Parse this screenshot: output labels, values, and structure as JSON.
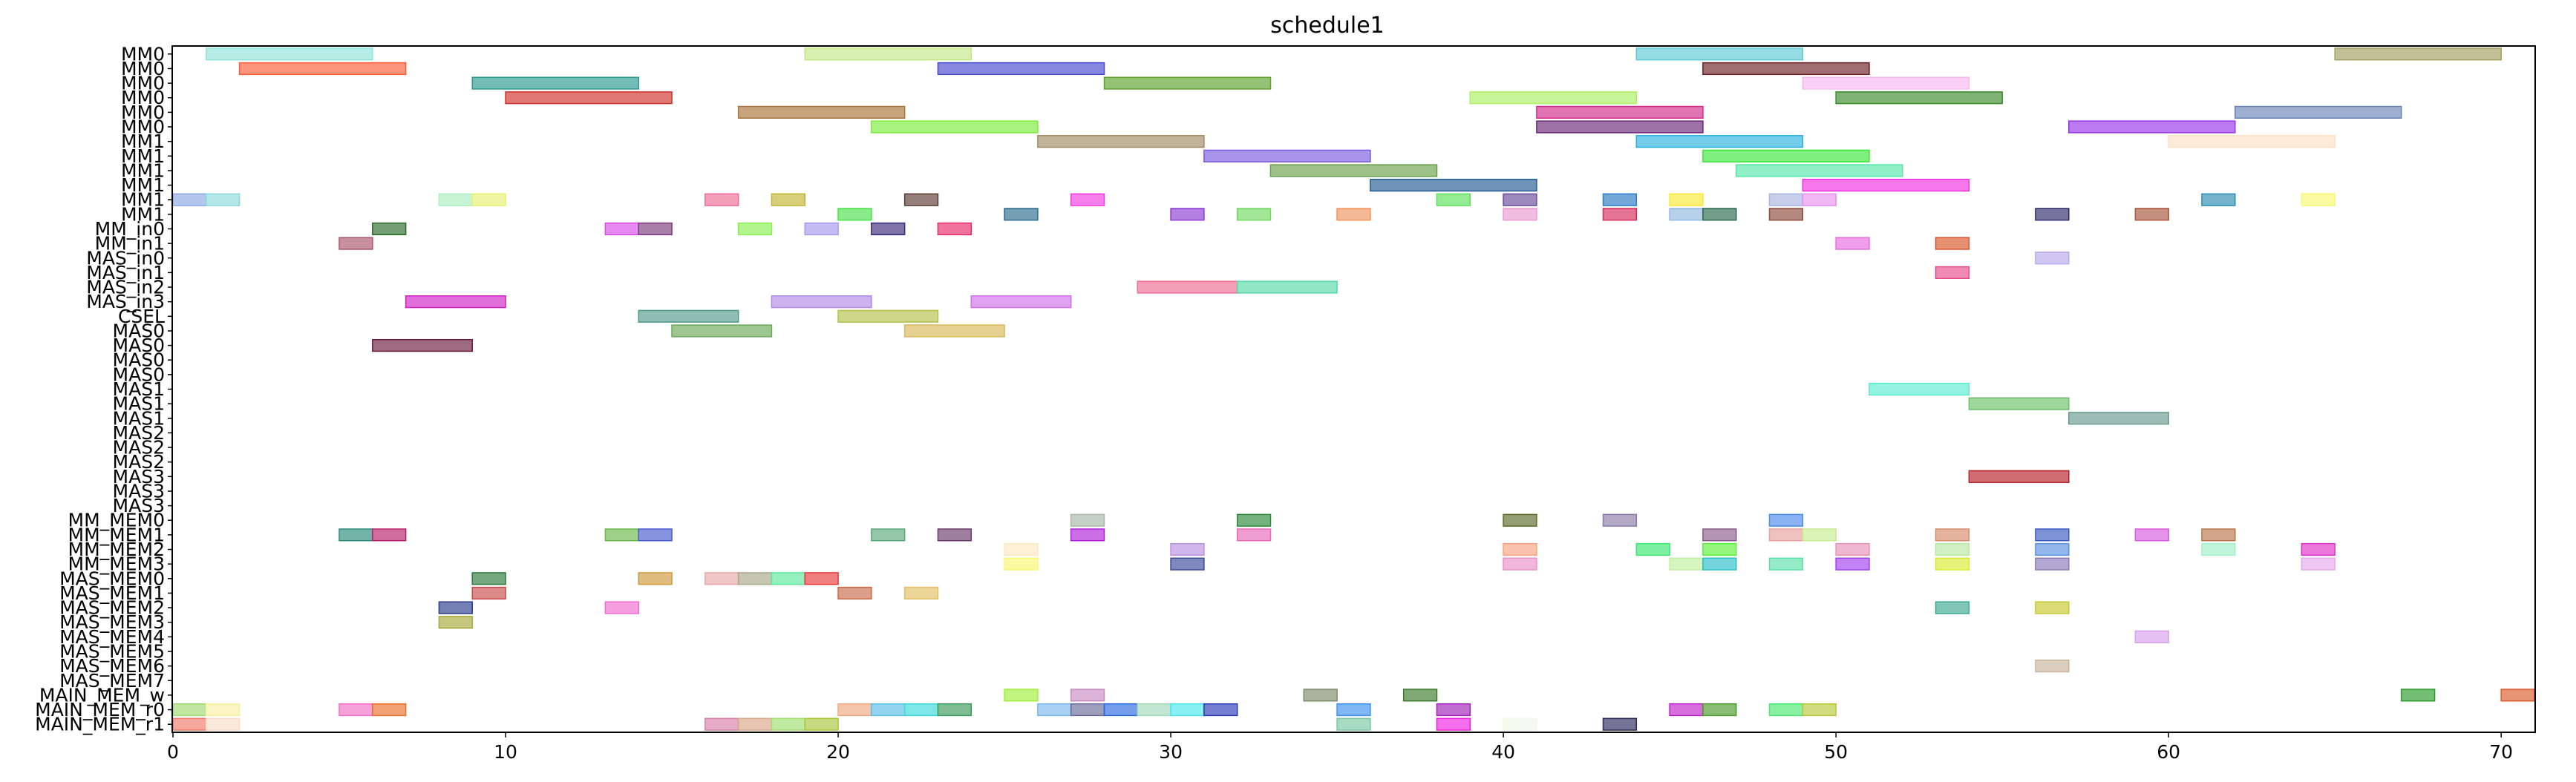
{
  "chart_data": {
    "type": "gantt",
    "title": "schedule1",
    "xlim": [
      0,
      71
    ],
    "x_ticks": [
      0,
      10,
      20,
      30,
      40,
      50,
      60,
      70
    ],
    "grid": false,
    "rows": [
      "MM0",
      "MM0",
      "MM0",
      "MM0",
      "MM0",
      "MM0",
      "MM1",
      "MM1",
      "MM1",
      "MM1",
      "MM1",
      "MM1",
      "MM_in0",
      "MM_in1",
      "MAS_in0",
      "MAS_in1",
      "MAS_in2",
      "MAS_in3",
      "CSEL",
      "MAS0",
      "MAS0",
      "MAS0",
      "MAS0",
      "MAS1",
      "MAS1",
      "MAS1",
      "MAS2",
      "MAS2",
      "MAS2",
      "MAS3",
      "MAS3",
      "MAS3",
      "MM_MEM0",
      "MM_MEM1",
      "MM_MEM2",
      "MM_MEM3",
      "MAS_MEM0",
      "MAS_MEM1",
      "MAS_MEM2",
      "MAS_MEM3",
      "MAS_MEM4",
      "MAS_MEM5",
      "MAS_MEM6",
      "MAS_MEM7",
      "MAIN_MEM_w",
      "MAIN_MEM_r0",
      "MAIN_MEM_r1"
    ],
    "tasks": [
      {
        "row": 0,
        "start": 1,
        "end": 6,
        "color": "#8ee3d8"
      },
      {
        "row": 0,
        "start": 19,
        "end": 24,
        "color": "#c2e884"
      },
      {
        "row": 0,
        "start": 44,
        "end": 49,
        "color": "#5ecad6"
      },
      {
        "row": 0,
        "start": 65,
        "end": 70,
        "color": "#a39d60"
      },
      {
        "row": 1,
        "start": 2,
        "end": 7,
        "color": "#ff5a36"
      },
      {
        "row": 1,
        "start": 23,
        "end": 28,
        "color": "#4848d0"
      },
      {
        "row": 1,
        "start": 46,
        "end": 51,
        "color": "#6b1f24"
      },
      {
        "row": 2,
        "start": 9,
        "end": 14,
        "color": "#2a9a90"
      },
      {
        "row": 2,
        "start": 28,
        "end": 33,
        "color": "#5ea22c"
      },
      {
        "row": 2,
        "start": 49,
        "end": 54,
        "color": "#f7b8f0"
      },
      {
        "row": 3,
        "start": 10,
        "end": 15,
        "color": "#d0302a"
      },
      {
        "row": 3,
        "start": 39,
        "end": 44,
        "color": "#aaf060"
      },
      {
        "row": 3,
        "start": 50,
        "end": 55,
        "color": "#3a8a2a"
      },
      {
        "row": 4,
        "start": 17,
        "end": 22,
        "color": "#a8743a"
      },
      {
        "row": 4,
        "start": 41,
        "end": 46,
        "color": "#d42a8a"
      },
      {
        "row": 4,
        "start": 62,
        "end": 67,
        "color": "#6a84b8"
      },
      {
        "row": 5,
        "start": 21,
        "end": 26,
        "color": "#7aec38"
      },
      {
        "row": 5,
        "start": 41,
        "end": 46,
        "color": "#6a2678"
      },
      {
        "row": 5,
        "start": 57,
        "end": 62,
        "color": "#9a34ec"
      },
      {
        "row": 6,
        "start": 26,
        "end": 31,
        "color": "#a08a62"
      },
      {
        "row": 6,
        "start": 44,
        "end": 49,
        "color": "#2ab0e0"
      },
      {
        "row": 6,
        "start": 60,
        "end": 65,
        "color": "#fbe0c4"
      },
      {
        "row": 7,
        "start": 31,
        "end": 36,
        "color": "#7a5ae0"
      },
      {
        "row": 7,
        "start": 46,
        "end": 51,
        "color": "#3ae83a"
      },
      {
        "row": 8,
        "start": 33,
        "end": 38,
        "color": "#6aa04a"
      },
      {
        "row": 8,
        "start": 47,
        "end": 52,
        "color": "#56e6a8"
      },
      {
        "row": 9,
        "start": 36,
        "end": 41,
        "color": "#245a92"
      },
      {
        "row": 9,
        "start": 49,
        "end": 54,
        "color": "#f230e0"
      },
      {
        "row": 10,
        "start": 0,
        "end": 1,
        "color": "#8aa8e0"
      },
      {
        "row": 10,
        "start": 1,
        "end": 2,
        "color": "#8ad8d8"
      },
      {
        "row": 10,
        "start": 8,
        "end": 9,
        "color": "#aaeec0"
      },
      {
        "row": 10,
        "start": 9,
        "end": 10,
        "color": "#e8f070"
      },
      {
        "row": 10,
        "start": 16,
        "end": 17,
        "color": "#f06a94"
      },
      {
        "row": 10,
        "start": 18,
        "end": 19,
        "color": "#c0b430"
      },
      {
        "row": 10,
        "start": 22,
        "end": 23,
        "color": "#5a3a34"
      },
      {
        "row": 10,
        "start": 27,
        "end": 28,
        "color": "#f03ae0"
      },
      {
        "row": 10,
        "start": 38,
        "end": 39,
        "color": "#5ae05a"
      },
      {
        "row": 10,
        "start": 40,
        "end": 41,
        "color": "#6a4a9a"
      },
      {
        "row": 10,
        "start": 43,
        "end": 44,
        "color": "#2a7ac8"
      },
      {
        "row": 10,
        "start": 45,
        "end": 46,
        "color": "#f8ea30"
      },
      {
        "row": 10,
        "start": 48,
        "end": 49,
        "color": "#a8b4e0"
      },
      {
        "row": 10,
        "start": 49,
        "end": 50,
        "color": "#e890f0"
      },
      {
        "row": 10,
        "start": 61,
        "end": 62,
        "color": "#2a8ab0"
      },
      {
        "row": 10,
        "start": 64,
        "end": 65,
        "color": "#f8f870"
      },
      {
        "row": 11,
        "start": 20,
        "end": 21,
        "color": "#4ae04a"
      },
      {
        "row": 11,
        "start": 25,
        "end": 26,
        "color": "#2a6a8a"
      },
      {
        "row": 11,
        "start": 30,
        "end": 31,
        "color": "#8a3ad0"
      },
      {
        "row": 11,
        "start": 32,
        "end": 33,
        "color": "#70d860"
      },
      {
        "row": 11,
        "start": 35,
        "end": 36,
        "color": "#f0925a"
      },
      {
        "row": 11,
        "start": 40,
        "end": 41,
        "color": "#e89ad0"
      },
      {
        "row": 11,
        "start": 43,
        "end": 44,
        "color": "#d82a5a"
      },
      {
        "row": 11,
        "start": 45,
        "end": 46,
        "color": "#90b8e0"
      },
      {
        "row": 11,
        "start": 46,
        "end": 47,
        "color": "#2a6a4a"
      },
      {
        "row": 11,
        "start": 48,
        "end": 49,
        "color": "#8a4a3a"
      },
      {
        "row": 11,
        "start": 56,
        "end": 57,
        "color": "#2a2a6a"
      },
      {
        "row": 11,
        "start": 59,
        "end": 60,
        "color": "#a8543a"
      },
      {
        "row": 12,
        "start": 6,
        "end": 7,
        "color": "#2a6a2a"
      },
      {
        "row": 12,
        "start": 13,
        "end": 14,
        "color": "#d84ae8"
      },
      {
        "row": 12,
        "start": 14,
        "end": 15,
        "color": "#7a3a7a"
      },
      {
        "row": 12,
        "start": 17,
        "end": 18,
        "color": "#8af050"
      },
      {
        "row": 12,
        "start": 19,
        "end": 20,
        "color": "#a898f0"
      },
      {
        "row": 12,
        "start": 21,
        "end": 22,
        "color": "#3a2a7a"
      },
      {
        "row": 12,
        "start": 23,
        "end": 24,
        "color": "#e82a6a"
      },
      {
        "row": 13,
        "start": 5,
        "end": 6,
        "color": "#a8546a"
      },
      {
        "row": 13,
        "start": 50,
        "end": 51,
        "color": "#e86ae0"
      },
      {
        "row": 13,
        "start": 53,
        "end": 54,
        "color": "#d8542a"
      },
      {
        "row": 14,
        "start": 56,
        "end": 57,
        "color": "#b8a8ec"
      },
      {
        "row": 15,
        "start": 53,
        "end": 54,
        "color": "#e84a8a"
      },
      {
        "row": 16,
        "start": 29,
        "end": 32,
        "color": "#f06a94"
      },
      {
        "row": 16,
        "start": 32,
        "end": 35,
        "color": "#56d8a8"
      },
      {
        "row": 17,
        "start": 7,
        "end": 10,
        "color": "#d020c8"
      },
      {
        "row": 17,
        "start": 18,
        "end": 21,
        "color": "#b088e8"
      },
      {
        "row": 17,
        "start": 24,
        "end": 27,
        "color": "#d070e8"
      },
      {
        "row": 18,
        "start": 14,
        "end": 17,
        "color": "#509a8a"
      },
      {
        "row": 18,
        "start": 20,
        "end": 23,
        "color": "#b4c048"
      },
      {
        "row": 19,
        "start": 15,
        "end": 18,
        "color": "#6aa858"
      },
      {
        "row": 19,
        "start": 22,
        "end": 25,
        "color": "#dab858"
      },
      {
        "row": 20,
        "start": 6,
        "end": 9,
        "color": "#6a1a3a"
      },
      {
        "row": 23,
        "start": 51,
        "end": 54,
        "color": "#5aecd0"
      },
      {
        "row": 24,
        "start": 54,
        "end": 57,
        "color": "#6ac06a"
      },
      {
        "row": 25,
        "start": 57,
        "end": 60,
        "color": "#6a9a90"
      },
      {
        "row": 29,
        "start": 54,
        "end": 57,
        "color": "#b8202a"
      },
      {
        "row": 32,
        "start": 27,
        "end": 28,
        "color": "#a8b8a8"
      },
      {
        "row": 32,
        "start": 32,
        "end": 33,
        "color": "#2a8a3a"
      },
      {
        "row": 32,
        "start": 40,
        "end": 41,
        "color": "#5a6a2a"
      },
      {
        "row": 32,
        "start": 43,
        "end": 44,
        "color": "#8a7aa8"
      },
      {
        "row": 32,
        "start": 48,
        "end": 49,
        "color": "#4a8aec"
      },
      {
        "row": 33,
        "start": 5,
        "end": 6,
        "color": "#2a8a7a"
      },
      {
        "row": 33,
        "start": 6,
        "end": 7,
        "color": "#b8206a"
      },
      {
        "row": 33,
        "start": 13,
        "end": 14,
        "color": "#6ab848"
      },
      {
        "row": 33,
        "start": 14,
        "end": 15,
        "color": "#4a5ad0"
      },
      {
        "row": 33,
        "start": 21,
        "end": 22,
        "color": "#5aa87a"
      },
      {
        "row": 33,
        "start": 23,
        "end": 24,
        "color": "#6a3a6a"
      },
      {
        "row": 33,
        "start": 27,
        "end": 28,
        "color": "#b020d8"
      },
      {
        "row": 33,
        "start": 32,
        "end": 33,
        "color": "#e86ab8"
      },
      {
        "row": 33,
        "start": 46,
        "end": 47,
        "color": "#8a5a8a"
      },
      {
        "row": 33,
        "start": 48,
        "end": 49,
        "color": "#e8a0a0"
      },
      {
        "row": 33,
        "start": 49,
        "end": 50,
        "color": "#c8ec90"
      },
      {
        "row": 33,
        "start": 53,
        "end": 54,
        "color": "#d88a6a"
      },
      {
        "row": 33,
        "start": 56,
        "end": 57,
        "color": "#3a5ac0"
      },
      {
        "row": 33,
        "start": 59,
        "end": 60,
        "color": "#d85ae0"
      },
      {
        "row": 33,
        "start": 61,
        "end": 62,
        "color": "#b8744a"
      },
      {
        "row": 34,
        "start": 25,
        "end": 26,
        "color": "#fbe8c0"
      },
      {
        "row": 34,
        "start": 30,
        "end": 31,
        "color": "#b890e0"
      },
      {
        "row": 34,
        "start": 40,
        "end": 41,
        "color": "#f8a080"
      },
      {
        "row": 34,
        "start": 44,
        "end": 45,
        "color": "#3ae870"
      },
      {
        "row": 34,
        "start": 46,
        "end": 47,
        "color": "#5af03a"
      },
      {
        "row": 34,
        "start": 50,
        "end": 51,
        "color": "#e890b8"
      },
      {
        "row": 34,
        "start": 53,
        "end": 54,
        "color": "#b8e8a0"
      },
      {
        "row": 34,
        "start": 56,
        "end": 57,
        "color": "#5a90e0"
      },
      {
        "row": 34,
        "start": 61,
        "end": 62,
        "color": "#a0f0c8"
      },
      {
        "row": 34,
        "start": 64,
        "end": 65,
        "color": "#e030c8"
      },
      {
        "row": 35,
        "start": 25,
        "end": 26,
        "color": "#f8f870"
      },
      {
        "row": 35,
        "start": 30,
        "end": 31,
        "color": "#3a4a9a"
      },
      {
        "row": 35,
        "start": 40,
        "end": 41,
        "color": "#e890c8"
      },
      {
        "row": 35,
        "start": 45,
        "end": 46,
        "color": "#c0f0a0"
      },
      {
        "row": 35,
        "start": 46,
        "end": 47,
        "color": "#2ac0c8"
      },
      {
        "row": 35,
        "start": 48,
        "end": 49,
        "color": "#5ae0a8"
      },
      {
        "row": 35,
        "start": 50,
        "end": 51,
        "color": "#a040f0"
      },
      {
        "row": 35,
        "start": 53,
        "end": 54,
        "color": "#d8ec30"
      },
      {
        "row": 35,
        "start": 56,
        "end": 57,
        "color": "#8a7ab8"
      },
      {
        "row": 35,
        "start": 64,
        "end": 65,
        "color": "#e8a8ec"
      },
      {
        "row": 36,
        "start": 9,
        "end": 10,
        "color": "#2a7a3a"
      },
      {
        "row": 36,
        "start": 14,
        "end": 15,
        "color": "#d09a3a"
      },
      {
        "row": 36,
        "start": 16,
        "end": 17,
        "color": "#e8a8a8"
      },
      {
        "row": 36,
        "start": 17,
        "end": 18,
        "color": "#a8a88a"
      },
      {
        "row": 36,
        "start": 18,
        "end": 19,
        "color": "#5ae89a"
      },
      {
        "row": 36,
        "start": 19,
        "end": 20,
        "color": "#e83a3a"
      },
      {
        "row": 37,
        "start": 9,
        "end": 10,
        "color": "#c84a4a"
      },
      {
        "row": 37,
        "start": 20,
        "end": 21,
        "color": "#c86a4a"
      },
      {
        "row": 37,
        "start": 22,
        "end": 23,
        "color": "#e0c060"
      },
      {
        "row": 38,
        "start": 8,
        "end": 9,
        "color": "#2a3a8a"
      },
      {
        "row": 38,
        "start": 13,
        "end": 14,
        "color": "#f06ad0"
      },
      {
        "row": 38,
        "start": 53,
        "end": 54,
        "color": "#3aa890"
      },
      {
        "row": 38,
        "start": 56,
        "end": 57,
        "color": "#c8c830"
      },
      {
        "row": 39,
        "start": 8,
        "end": 9,
        "color": "#a8a83a"
      },
      {
        "row": 40,
        "start": 59,
        "end": 60,
        "color": "#d8a0ec"
      },
      {
        "row": 42,
        "start": 56,
        "end": 57,
        "color": "#c8b49a"
      },
      {
        "row": 44,
        "start": 25,
        "end": 26,
        "color": "#a0ec3a"
      },
      {
        "row": 44,
        "start": 27,
        "end": 28,
        "color": "#c88ac0"
      },
      {
        "row": 44,
        "start": 34,
        "end": 35,
        "color": "#7a8a6a"
      },
      {
        "row": 44,
        "start": 37,
        "end": 38,
        "color": "#3a7a2a"
      },
      {
        "row": 44,
        "start": 67,
        "end": 68,
        "color": "#2a9a2a"
      },
      {
        "row": 44,
        "start": 70,
        "end": 71,
        "color": "#d85a2a"
      },
      {
        "row": 45,
        "start": 0,
        "end": 1,
        "color": "#a0d870"
      },
      {
        "row": 45,
        "start": 1,
        "end": 2,
        "color": "#f8f0a0"
      },
      {
        "row": 45,
        "start": 5,
        "end": 6,
        "color": "#f070c8"
      },
      {
        "row": 45,
        "start": 6,
        "end": 7,
        "color": "#e8702a"
      },
      {
        "row": 45,
        "start": 20,
        "end": 21,
        "color": "#f0a880"
      },
      {
        "row": 45,
        "start": 21,
        "end": 22,
        "color": "#5ac0e8"
      },
      {
        "row": 45,
        "start": 22,
        "end": 23,
        "color": "#3ad8d8"
      },
      {
        "row": 45,
        "start": 23,
        "end": 24,
        "color": "#3a9a5a"
      },
      {
        "row": 45,
        "start": 26,
        "end": 27,
        "color": "#7ab8ec"
      },
      {
        "row": 45,
        "start": 27,
        "end": 28,
        "color": "#6a6a9a"
      },
      {
        "row": 45,
        "start": 28,
        "end": 29,
        "color": "#2a6ae0"
      },
      {
        "row": 45,
        "start": 29,
        "end": 30,
        "color": "#a0d8b8"
      },
      {
        "row": 45,
        "start": 30,
        "end": 31,
        "color": "#4ae8ec"
      },
      {
        "row": 45,
        "start": 31,
        "end": 32,
        "color": "#2a3ab8"
      },
      {
        "row": 45,
        "start": 35,
        "end": 36,
        "color": "#3a90f0"
      },
      {
        "row": 45,
        "start": 38,
        "end": 39,
        "color": "#a020b8"
      },
      {
        "row": 45,
        "start": 45,
        "end": 46,
        "color": "#c020c8"
      },
      {
        "row": 45,
        "start": 46,
        "end": 47,
        "color": "#4a9a2a"
      },
      {
        "row": 45,
        "start": 48,
        "end": 49,
        "color": "#4ae870"
      },
      {
        "row": 45,
        "start": 49,
        "end": 50,
        "color": "#b8c83a"
      },
      {
        "row": 46,
        "start": 0,
        "end": 1,
        "color": "#f07a6a"
      },
      {
        "row": 46,
        "start": 1,
        "end": 2,
        "color": "#f8dcc8"
      },
      {
        "row": 46,
        "start": 16,
        "end": 17,
        "color": "#d880a8"
      },
      {
        "row": 46,
        "start": 17,
        "end": 18,
        "color": "#d8a888"
      },
      {
        "row": 46,
        "start": 18,
        "end": 19,
        "color": "#a0e070"
      },
      {
        "row": 46,
        "start": 19,
        "end": 20,
        "color": "#a8c83a"
      },
      {
        "row": 46,
        "start": 35,
        "end": 36,
        "color": "#7ac8a0"
      },
      {
        "row": 46,
        "start": 38,
        "end": 39,
        "color": "#f020e0"
      },
      {
        "row": 46,
        "start": 40,
        "end": 41,
        "color": "#f0f8e8"
      },
      {
        "row": 46,
        "start": 43,
        "end": 44,
        "color": "#2a2a5a"
      }
    ]
  }
}
